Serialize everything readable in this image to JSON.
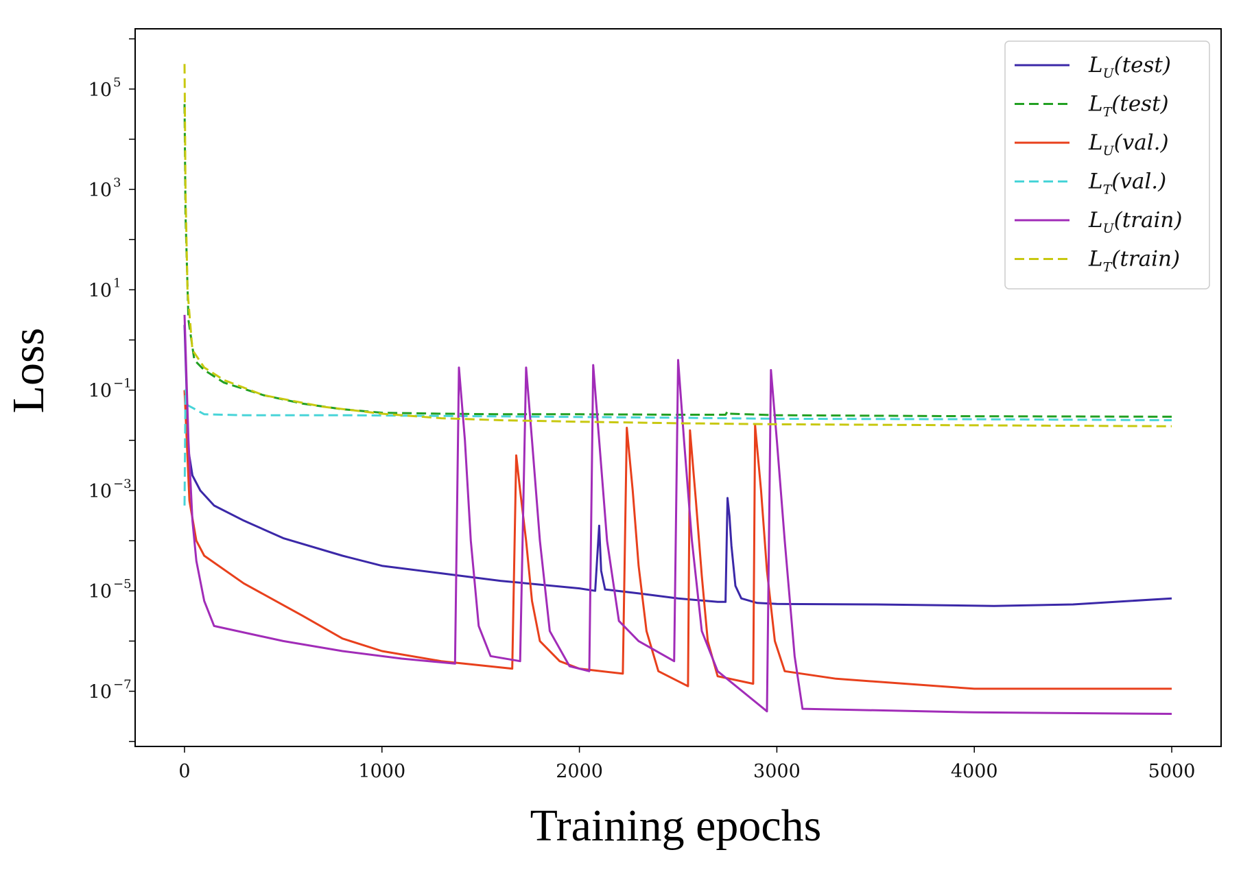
{
  "chart_data": {
    "type": "line",
    "title": "",
    "xlabel": "Training epochs",
    "ylabel": "Loss",
    "xlim": [
      -250,
      5250
    ],
    "ylim_log10": [
      -8.1,
      6.2
    ],
    "yscale": "log",
    "x_ticks": [
      {
        "value": 0,
        "label": "0"
      },
      {
        "value": 1000,
        "label": "1000"
      },
      {
        "value": 2000,
        "label": "2000"
      },
      {
        "value": 3000,
        "label": "3000"
      },
      {
        "value": 4000,
        "label": "4000"
      },
      {
        "value": 5000,
        "label": "5000"
      }
    ],
    "y_ticks": [
      {
        "exp": 5,
        "base": "10",
        "sup": "5"
      },
      {
        "exp": 3,
        "base": "10",
        "sup": "3"
      },
      {
        "exp": 1,
        "base": "10",
        "sup": "1"
      },
      {
        "exp": -1,
        "base": "10",
        "sup": "−1"
      },
      {
        "exp": -3,
        "base": "10",
        "sup": "−3"
      },
      {
        "exp": -5,
        "base": "10",
        "sup": "−5"
      },
      {
        "exp": -7,
        "base": "10",
        "sup": "−7"
      }
    ],
    "legend_position": "top-right",
    "series": [
      {
        "id": "LU_test",
        "base": "L",
        "sub": "U",
        "arg": "(test)",
        "color": "#3b28a8",
        "dash": false,
        "points": [
          [
            0,
            0.3
          ],
          [
            20,
            -2.2
          ],
          [
            40,
            -2.7
          ],
          [
            80,
            -3.0
          ],
          [
            150,
            -3.3
          ],
          [
            300,
            -3.6
          ],
          [
            500,
            -3.95
          ],
          [
            800,
            -4.3
          ],
          [
            1000,
            -4.5
          ],
          [
            1300,
            -4.65
          ],
          [
            1600,
            -4.8
          ],
          [
            2000,
            -4.95
          ],
          [
            2080,
            -5.0
          ],
          [
            2100,
            -3.7
          ],
          [
            2110,
            -4.6
          ],
          [
            2130,
            -4.97
          ],
          [
            2300,
            -5.05
          ],
          [
            2500,
            -5.15
          ],
          [
            2700,
            -5.22
          ],
          [
            2740,
            -5.22
          ],
          [
            2750,
            -3.15
          ],
          [
            2760,
            -3.5
          ],
          [
            2770,
            -4.1
          ],
          [
            2790,
            -4.9
          ],
          [
            2820,
            -5.15
          ],
          [
            2900,
            -5.24
          ],
          [
            3000,
            -5.26
          ],
          [
            3500,
            -5.27
          ],
          [
            4100,
            -5.3
          ],
          [
            4500,
            -5.27
          ],
          [
            5000,
            -5.15
          ]
        ]
      },
      {
        "id": "LT_test",
        "base": "L",
        "sub": "T",
        "arg": "(test)",
        "color": "#22a022",
        "dash": true,
        "points": [
          [
            0,
            4.7
          ],
          [
            5,
            2.5
          ],
          [
            20,
            0.4
          ],
          [
            50,
            -0.4
          ],
          [
            100,
            -0.6
          ],
          [
            200,
            -0.85
          ],
          [
            400,
            -1.1
          ],
          [
            600,
            -1.27
          ],
          [
            800,
            -1.38
          ],
          [
            1000,
            -1.45
          ],
          [
            1300,
            -1.47
          ],
          [
            1600,
            -1.48
          ],
          [
            2000,
            -1.48
          ],
          [
            2500,
            -1.49
          ],
          [
            2740,
            -1.49
          ],
          [
            2750,
            -1.42
          ],
          [
            2760,
            -1.47
          ],
          [
            3000,
            -1.5
          ],
          [
            4000,
            -1.52
          ],
          [
            5000,
            -1.53
          ]
        ]
      },
      {
        "id": "LU_val",
        "base": "L",
        "sub": "U",
        "arg": "(val.)",
        "color": "#e8401c",
        "dash": false,
        "points": [
          [
            0,
            -1.0
          ],
          [
            25,
            -3.2
          ],
          [
            60,
            -4.0
          ],
          [
            100,
            -4.3
          ],
          [
            300,
            -4.85
          ],
          [
            600,
            -5.5
          ],
          [
            800,
            -5.95
          ],
          [
            1000,
            -6.2
          ],
          [
            1300,
            -6.4
          ],
          [
            1660,
            -6.55
          ],
          [
            1680,
            -2.3
          ],
          [
            1700,
            -3.0
          ],
          [
            1730,
            -4.0
          ],
          [
            1760,
            -5.2
          ],
          [
            1800,
            -6.0
          ],
          [
            1900,
            -6.4
          ],
          [
            2000,
            -6.55
          ],
          [
            2220,
            -6.65
          ],
          [
            2240,
            -1.75
          ],
          [
            2270,
            -3.0
          ],
          [
            2300,
            -4.5
          ],
          [
            2340,
            -5.8
          ],
          [
            2400,
            -6.6
          ],
          [
            2550,
            -6.9
          ],
          [
            2560,
            -1.8
          ],
          [
            2590,
            -3.2
          ],
          [
            2620,
            -4.7
          ],
          [
            2650,
            -6.0
          ],
          [
            2700,
            -6.7
          ],
          [
            2880,
            -6.85
          ],
          [
            2890,
            -1.7
          ],
          [
            2920,
            -3.0
          ],
          [
            2950,
            -4.6
          ],
          [
            2990,
            -6.0
          ],
          [
            3040,
            -6.6
          ],
          [
            3300,
            -6.75
          ],
          [
            4000,
            -6.95
          ],
          [
            5000,
            -6.95
          ]
        ]
      },
      {
        "id": "LT_val",
        "base": "L",
        "sub": "T",
        "arg": "(val.)",
        "color": "#48d4d8",
        "dash": true,
        "points": [
          [
            0,
            -3.3
          ],
          [
            5,
            -1.0
          ],
          [
            15,
            -1.3
          ],
          [
            40,
            -1.35
          ],
          [
            100,
            -1.48
          ],
          [
            300,
            -1.5
          ],
          [
            800,
            -1.5
          ],
          [
            1500,
            -1.52
          ],
          [
            2500,
            -1.55
          ],
          [
            3000,
            -1.57
          ],
          [
            4000,
            -1.58
          ],
          [
            5000,
            -1.6
          ]
        ]
      },
      {
        "id": "LU_train",
        "base": "L",
        "sub": "U",
        "arg": "(train)",
        "color": "#a12cb8",
        "dash": false,
        "points": [
          [
            0,
            0.5
          ],
          [
            20,
            -2.0
          ],
          [
            40,
            -3.6
          ],
          [
            60,
            -4.4
          ],
          [
            100,
            -5.2
          ],
          [
            150,
            -5.7
          ],
          [
            500,
            -6.0
          ],
          [
            800,
            -6.2
          ],
          [
            1100,
            -6.35
          ],
          [
            1370,
            -6.45
          ],
          [
            1390,
            -0.55
          ],
          [
            1420,
            -2.0
          ],
          [
            1450,
            -4.0
          ],
          [
            1490,
            -5.7
          ],
          [
            1550,
            -6.3
          ],
          [
            1700,
            -6.4
          ],
          [
            1730,
            -0.55
          ],
          [
            1760,
            -2.0
          ],
          [
            1800,
            -4.0
          ],
          [
            1850,
            -5.8
          ],
          [
            1950,
            -6.5
          ],
          [
            2050,
            -6.6
          ],
          [
            2070,
            -0.5
          ],
          [
            2100,
            -2.0
          ],
          [
            2140,
            -4.0
          ],
          [
            2200,
            -5.6
          ],
          [
            2300,
            -6.0
          ],
          [
            2480,
            -6.4
          ],
          [
            2500,
            -0.4
          ],
          [
            2530,
            -2.0
          ],
          [
            2570,
            -4.0
          ],
          [
            2620,
            -5.8
          ],
          [
            2700,
            -6.6
          ],
          [
            2950,
            -7.4
          ],
          [
            2970,
            -0.6
          ],
          [
            3000,
            -2.0
          ],
          [
            3040,
            -4.0
          ],
          [
            3090,
            -6.3
          ],
          [
            3130,
            -7.35
          ],
          [
            3500,
            -7.38
          ],
          [
            4000,
            -7.42
          ],
          [
            5000,
            -7.45
          ]
        ]
      },
      {
        "id": "LT_train",
        "base": "L",
        "sub": "T",
        "arg": "(train)",
        "color": "#c8c810",
        "dash": true,
        "points": [
          [
            0,
            5.5
          ],
          [
            5,
            3.0
          ],
          [
            15,
            1.0
          ],
          [
            40,
            -0.2
          ],
          [
            100,
            -0.55
          ],
          [
            200,
            -0.8
          ],
          [
            400,
            -1.1
          ],
          [
            700,
            -1.33
          ],
          [
            1000,
            -1.47
          ],
          [
            1300,
            -1.56
          ],
          [
            1600,
            -1.6
          ],
          [
            2000,
            -1.63
          ],
          [
            2500,
            -1.66
          ],
          [
            3000,
            -1.68
          ],
          [
            4000,
            -1.7
          ],
          [
            5000,
            -1.72
          ]
        ]
      }
    ]
  }
}
